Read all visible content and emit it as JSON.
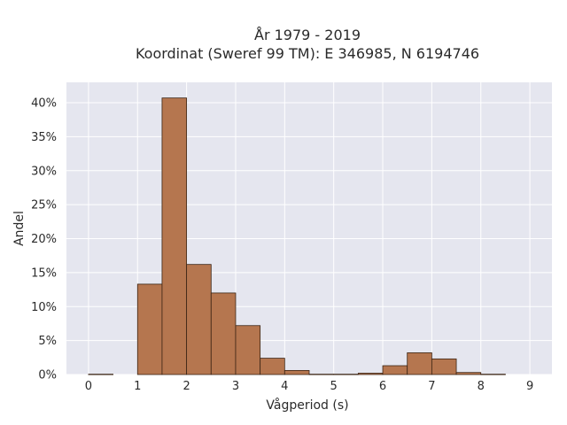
{
  "chart_data": {
    "type": "bar",
    "title": [
      "År 1979 - 2019",
      "Koordinat (Sweref 99 TM): E 346985, N 6194746"
    ],
    "xlabel": "Vågperiod (s)",
    "ylabel": "Andel",
    "bin_width": 0.5,
    "bins": [
      {
        "start": 0.0,
        "end": 0.5,
        "value": 0.05
      },
      {
        "start": 0.5,
        "end": 1.0,
        "value": 0.0
      },
      {
        "start": 1.0,
        "end": 1.5,
        "value": 13.3
      },
      {
        "start": 1.5,
        "end": 2.0,
        "value": 40.7
      },
      {
        "start": 2.0,
        "end": 2.5,
        "value": 16.2
      },
      {
        "start": 2.5,
        "end": 3.0,
        "value": 12.0
      },
      {
        "start": 3.0,
        "end": 3.5,
        "value": 7.2
      },
      {
        "start": 3.5,
        "end": 4.0,
        "value": 2.4
      },
      {
        "start": 4.0,
        "end": 4.5,
        "value": 0.6
      },
      {
        "start": 4.5,
        "end": 5.0,
        "value": 0.05
      },
      {
        "start": 5.0,
        "end": 5.5,
        "value": 0.05
      },
      {
        "start": 5.5,
        "end": 6.0,
        "value": 0.2
      },
      {
        "start": 6.0,
        "end": 6.5,
        "value": 1.3
      },
      {
        "start": 6.5,
        "end": 7.0,
        "value": 3.2
      },
      {
        "start": 7.0,
        "end": 7.5,
        "value": 2.3
      },
      {
        "start": 7.5,
        "end": 8.0,
        "value": 0.3
      },
      {
        "start": 8.0,
        "end": 8.5,
        "value": 0.05
      }
    ],
    "xlim": [
      -0.45,
      9.45
    ],
    "ylim": [
      0,
      43
    ],
    "xticks": [
      0,
      1,
      2,
      3,
      4,
      5,
      6,
      7,
      8,
      9
    ],
    "yticks": [
      0,
      5,
      10,
      15,
      20,
      25,
      30,
      35,
      40
    ],
    "ytick_suffix": "%",
    "grid": true,
    "legend": "none",
    "colors": {
      "bar_fill": "#b5764f",
      "bar_stroke": "#3b2414",
      "plot_bg": "#e5e6ef",
      "grid": "#ffffff",
      "text": "#2a2a2a"
    }
  }
}
